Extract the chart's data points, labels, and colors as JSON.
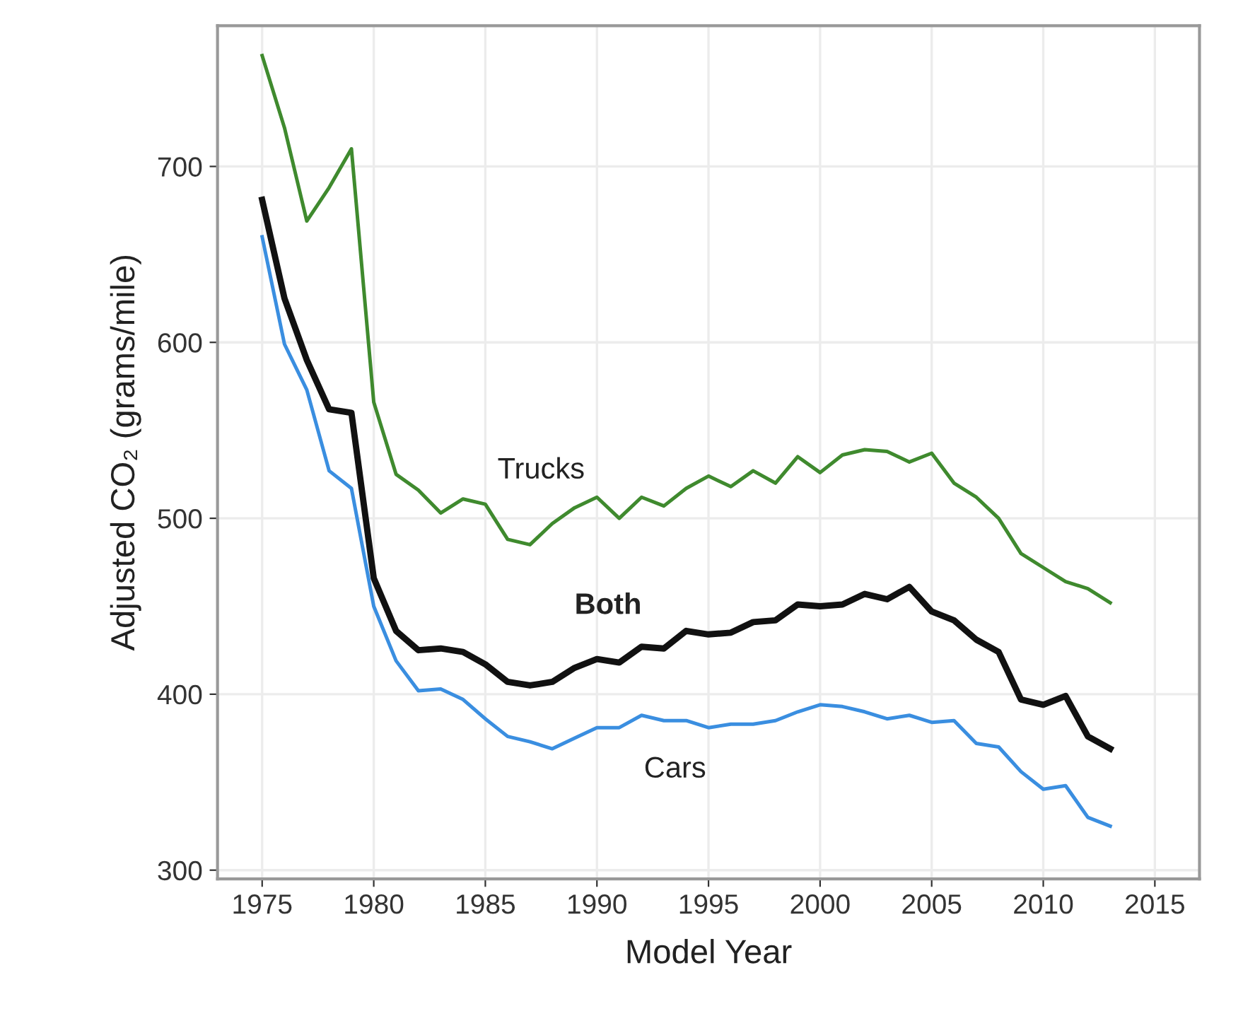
{
  "chart_data": {
    "type": "line",
    "xlabel": "Model Year",
    "ylabel": "Adjusted CO₂ (grams/mile)",
    "x": [
      1975,
      1976,
      1977,
      1978,
      1979,
      1980,
      1981,
      1982,
      1983,
      1984,
      1985,
      1986,
      1987,
      1988,
      1989,
      1990,
      1991,
      1992,
      1993,
      1994,
      1995,
      1996,
      1997,
      1998,
      1999,
      2000,
      2001,
      2002,
      2003,
      2004,
      2005,
      2006,
      2007,
      2008,
      2009,
      2010,
      2011,
      2012,
      2013
    ],
    "series": [
      {
        "name": "Trucks",
        "color": "#3f8a2e",
        "values": [
          763,
          722,
          669,
          688,
          710,
          566,
          525,
          516,
          503,
          511,
          508,
          488,
          485,
          497,
          506,
          512,
          500,
          512,
          507,
          517,
          524,
          518,
          527,
          520,
          535,
          526,
          536,
          539,
          538,
          532,
          537,
          520,
          512,
          500,
          480,
          472,
          464,
          460,
          452
        ]
      },
      {
        "name": "Both",
        "color": "#111111",
        "values": [
          681,
          625,
          590,
          562,
          560,
          466,
          436,
          425,
          426,
          424,
          417,
          407,
          405,
          407,
          415,
          420,
          418,
          427,
          426,
          436,
          434,
          435,
          441,
          442,
          451,
          450,
          451,
          457,
          454,
          461,
          447,
          442,
          431,
          424,
          397,
          394,
          399,
          376,
          369
        ]
      },
      {
        "name": "Cars",
        "color": "#3a8ee0",
        "values": [
          660,
          599,
          573,
          527,
          517,
          450,
          419,
          402,
          403,
          397,
          386,
          376,
          373,
          369,
          375,
          381,
          381,
          388,
          385,
          385,
          381,
          383,
          383,
          385,
          390,
          394,
          393,
          390,
          386,
          388,
          384,
          385,
          372,
          370,
          356,
          346,
          348,
          330,
          325
        ]
      }
    ],
    "xlim": [
      1973,
      2017
    ],
    "ylim": [
      295,
      780
    ],
    "xticks": [
      1975,
      1980,
      1985,
      1990,
      1995,
      2000,
      2005,
      2010,
      2015
    ],
    "yticks": [
      300,
      400,
      500,
      600,
      700
    ],
    "grid": true,
    "legend": false,
    "marker": "none",
    "line_style": "solid"
  }
}
